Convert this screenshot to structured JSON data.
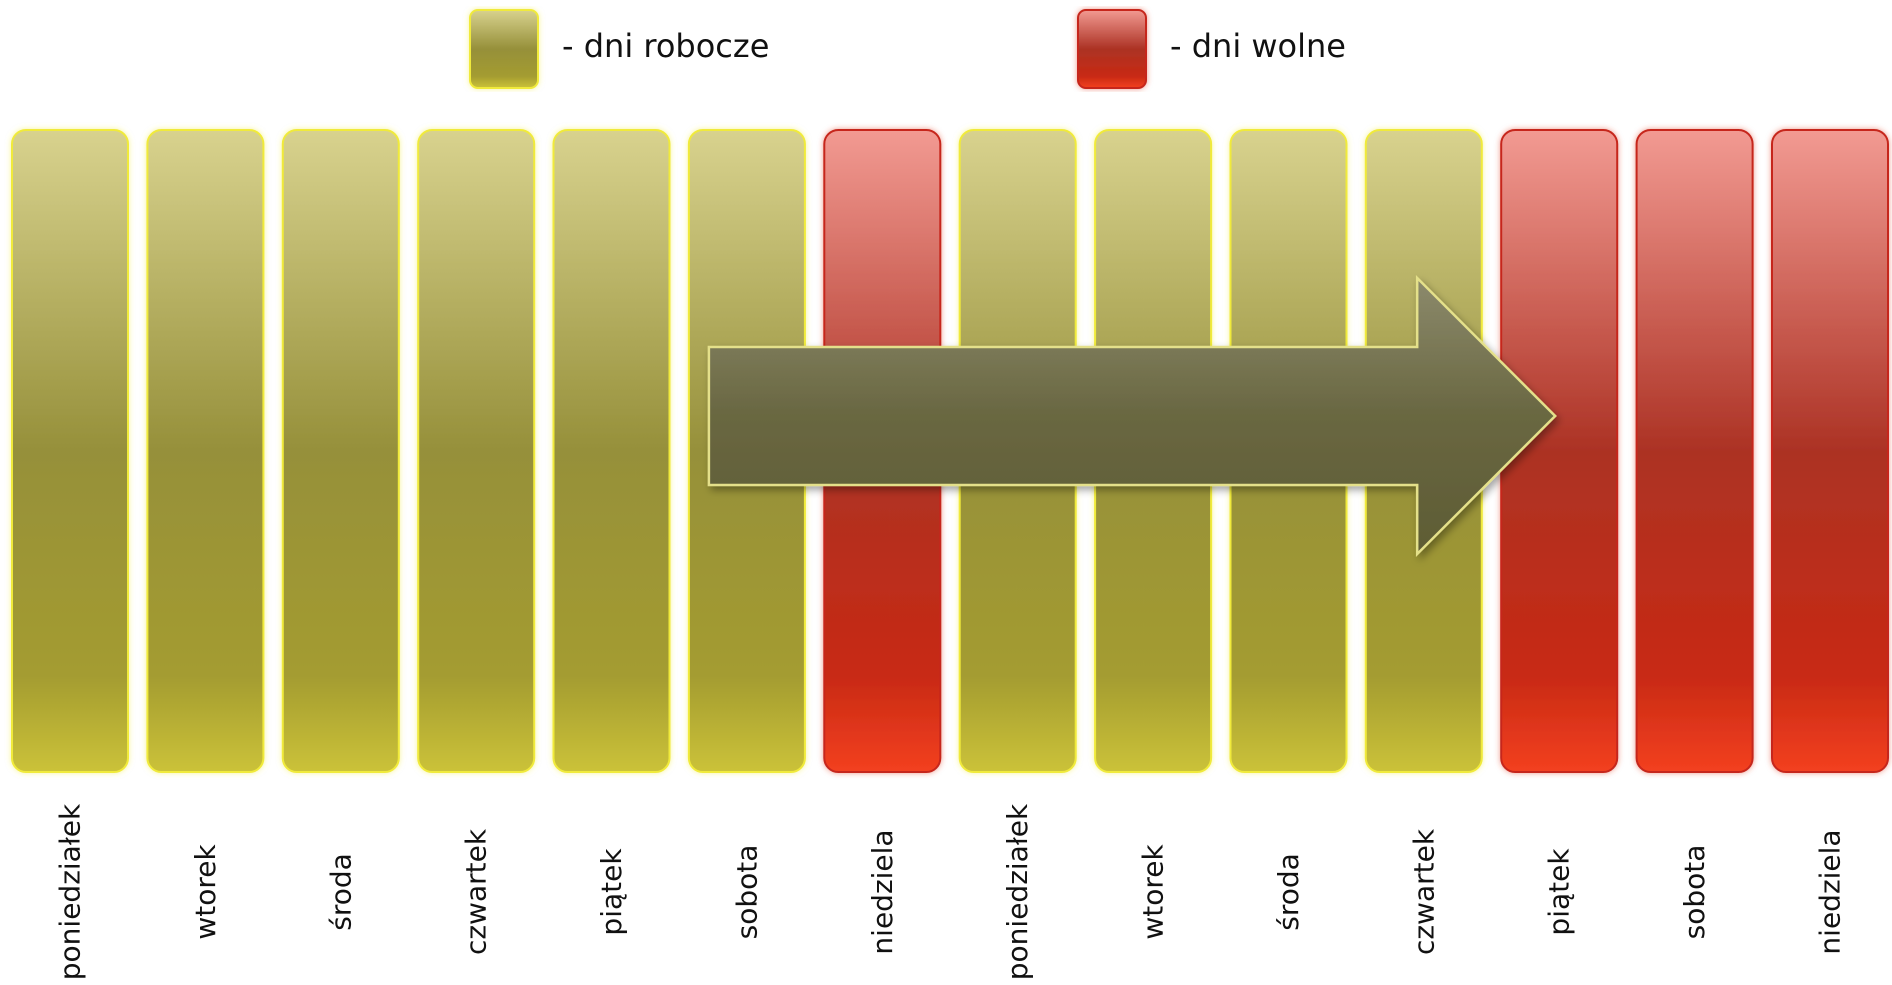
{
  "legend": [
    {
      "label": "- dni robocze",
      "kind": "work"
    },
    {
      "label": "- dni wolne",
      "kind": "free"
    }
  ],
  "days": [
    {
      "label": "poniedziałek",
      "kind": "work"
    },
    {
      "label": "wtorek",
      "kind": "work"
    },
    {
      "label": "środa",
      "kind": "work"
    },
    {
      "label": "czwartek",
      "kind": "work"
    },
    {
      "label": "piątek",
      "kind": "work"
    },
    {
      "label": "sobota",
      "kind": "work"
    },
    {
      "label": "niedziela",
      "kind": "free"
    },
    {
      "label": "poniedziałek",
      "kind": "work"
    },
    {
      "label": "wtorek",
      "kind": "work"
    },
    {
      "label": "środa",
      "kind": "work"
    },
    {
      "label": "czwartek",
      "kind": "work"
    },
    {
      "label": "piątek",
      "kind": "free"
    },
    {
      "label": "sobota",
      "kind": "free"
    },
    {
      "label": "niedziela",
      "kind": "free"
    }
  ],
  "arrow": {
    "from_day_index": 5,
    "to_day_index": 11
  },
  "colors": {
    "work_top": "#d8d28e",
    "work_mid": "#96903a",
    "work_bottom": "#cbc239",
    "work_border": "#f0ea3a",
    "free_top": "#f29a92",
    "free_mid": "#ac3224",
    "free_bottom": "#f34020",
    "free_border": "#c6281c",
    "arrow_top": "#8c8a6c",
    "arrow_bottom": "#5e5c34",
    "arrow_border": "#e4e08a",
    "text": "#111111"
  }
}
